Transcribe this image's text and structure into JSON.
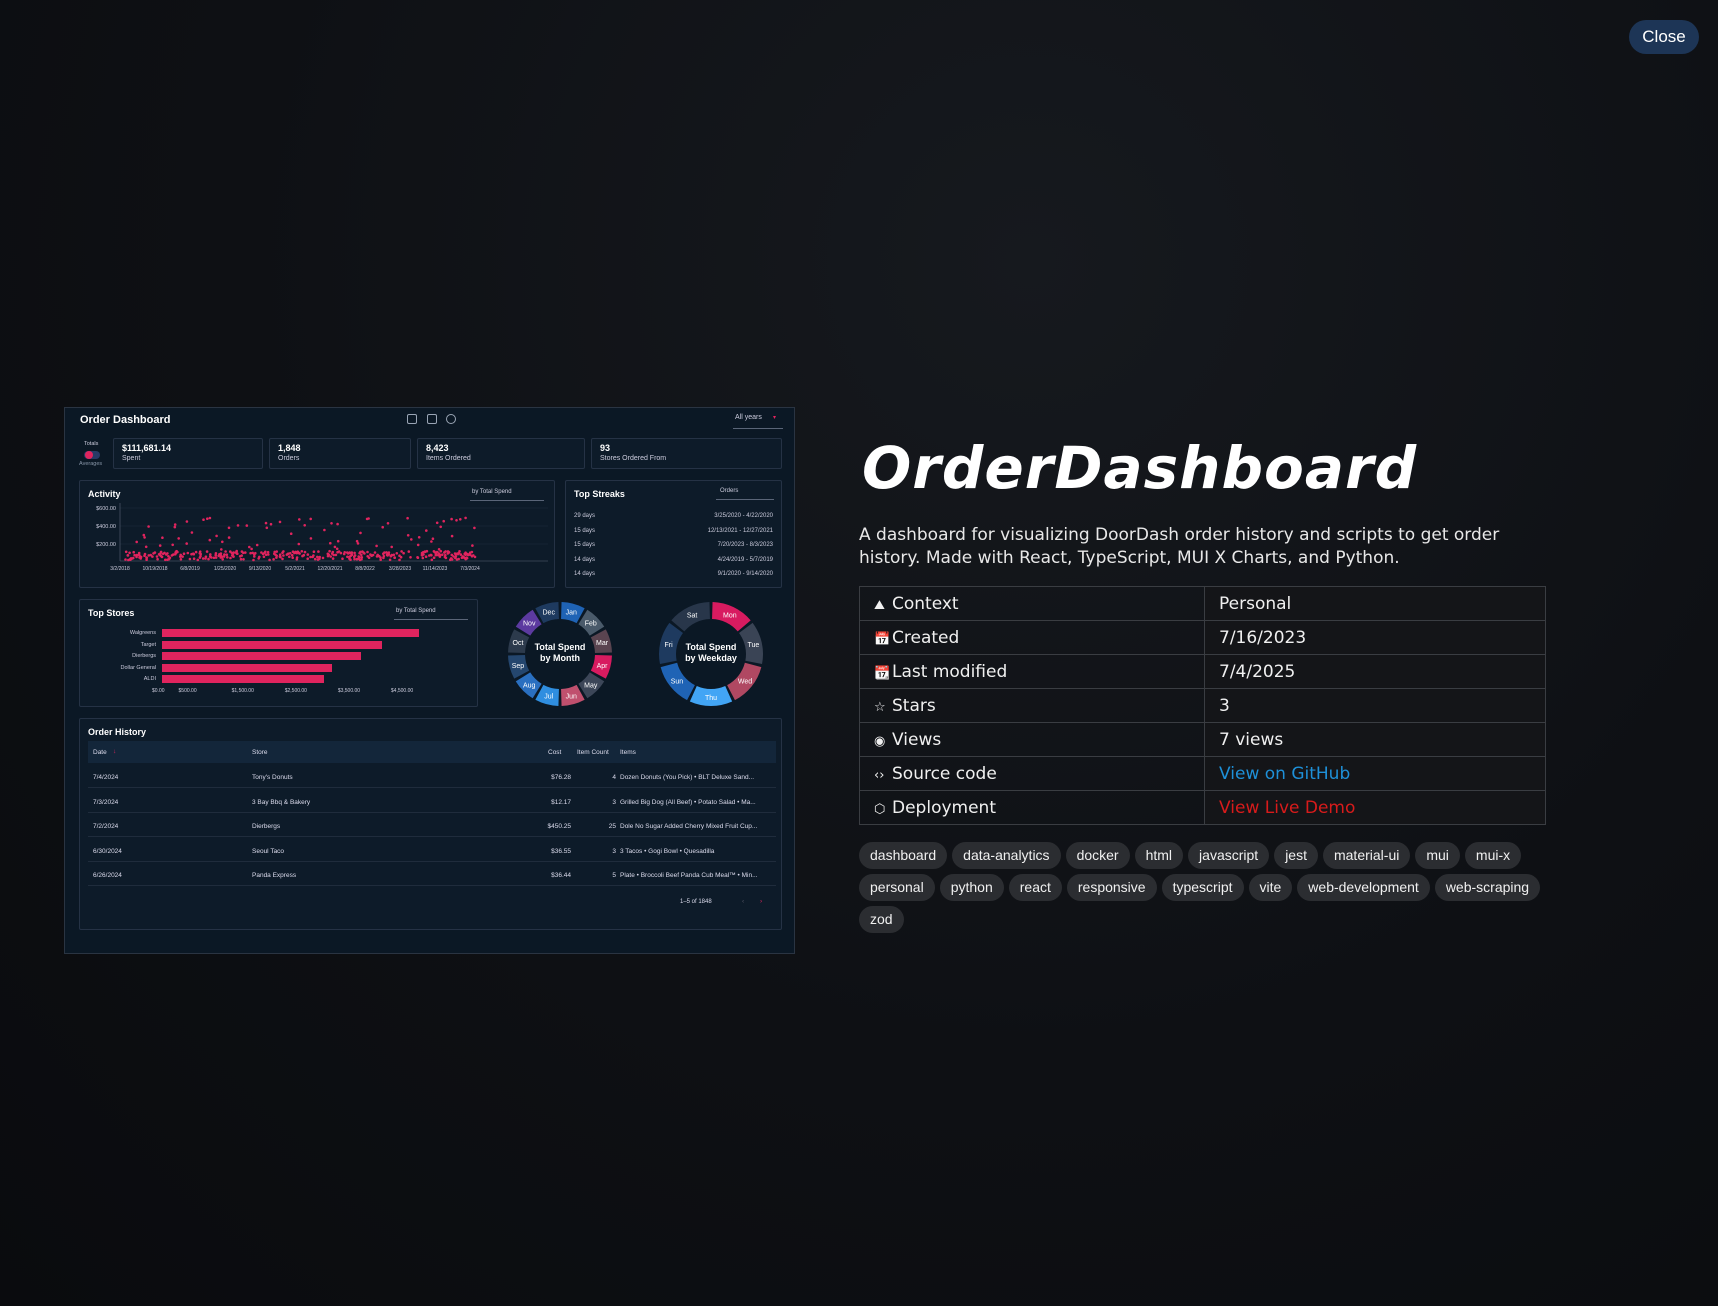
{
  "close_label": "Close",
  "project": {
    "title": "OrderDashboard",
    "description": "A dashboard for visualizing DoorDash order history and scripts to get order history. Made with React, TypeScript, MUI X Charts, and Python."
  },
  "meta": [
    {
      "icon": "context-icon",
      "glyph": "⛰",
      "key": "Context",
      "value": "Personal"
    },
    {
      "icon": "calendar-icon",
      "glyph": "📅",
      "key": "Created",
      "value": "7/16/2023"
    },
    {
      "icon": "calendar-edit-icon",
      "glyph": "📆",
      "key": "Last modified",
      "value": "7/4/2025"
    },
    {
      "icon": "star-icon",
      "glyph": "☆",
      "key": "Stars",
      "value": "3"
    },
    {
      "icon": "eye-icon",
      "glyph": "◉",
      "key": "Views",
      "value": "7 views"
    },
    {
      "icon": "code-icon",
      "glyph": "‹›",
      "key": "Source code",
      "value": "View on GitHub"
    },
    {
      "icon": "cube-icon",
      "glyph": "⬡",
      "key": "Deployment",
      "value": "View Live Demo"
    }
  ],
  "tags": [
    "dashboard",
    "data-analytics",
    "docker",
    "html",
    "javascript",
    "jest",
    "material-ui",
    "mui",
    "mui-x",
    "personal",
    "python",
    "react",
    "responsive",
    "typescript",
    "vite",
    "web-development",
    "web-scraping",
    "zod"
  ],
  "preview": {
    "title": "Order Dashboard",
    "years": "All years",
    "totals": "Totals",
    "averages": "Averages",
    "stats": [
      {
        "value": "$111,681.14",
        "label": "Spent"
      },
      {
        "value": "1,848",
        "label": "Orders"
      },
      {
        "value": "8,423",
        "label": "Items Ordered"
      },
      {
        "value": "93",
        "label": "Stores Ordered From"
      }
    ],
    "activity": {
      "title": "Activity",
      "select": "by Total Spend",
      "yticks": [
        "$600.00",
        "$400.00",
        "$200.00"
      ],
      "xticks": [
        "3/2/2018",
        "10/19/2018",
        "6/8/2019",
        "1/25/2020",
        "9/13/2020",
        "5/2/2021",
        "12/20/2021",
        "8/8/2022",
        "3/28/2023",
        "11/14/2023",
        "7/3/2024"
      ]
    },
    "streaks": {
      "title": "Top Streaks",
      "select": "Orders",
      "rows": [
        {
          "len": "29 days",
          "range": "3/25/2020 - 4/22/2020"
        },
        {
          "len": "15 days",
          "range": "12/13/2021 - 12/27/2021"
        },
        {
          "len": "15 days",
          "range": "7/20/2023 - 8/3/2023"
        },
        {
          "len": "14 days",
          "range": "4/24/2019 - 5/7/2019"
        },
        {
          "len": "14 days",
          "range": "9/1/2020 - 9/14/2020"
        }
      ]
    },
    "top_stores": {
      "title": "Top Stores",
      "select": "by Total Spend",
      "stores": [
        "Walgreens",
        "Target",
        "Dierbergs",
        "Dollar General",
        "ALDI"
      ],
      "values": [
        4850,
        4150,
        3750,
        3200,
        3050
      ],
      "xticks": [
        "$0.00",
        "$500.00",
        "$1,500.00",
        "$2,500.00",
        "$3,500.00",
        "$4,500.00"
      ]
    },
    "donut_month": {
      "title_1": "Total Spend",
      "title_2": "by Month",
      "labels": [
        "Jan",
        "Feb",
        "Mar",
        "Apr",
        "May",
        "Jun",
        "Jul",
        "Aug",
        "Sep",
        "Oct",
        "Nov",
        "Dec"
      ],
      "colors": [
        "#1f63b5",
        "#4a5a6a",
        "#5a4450",
        "#d81b60",
        "#3c4658",
        "#c0506e",
        "#2f8ee0",
        "#2a6fc0",
        "#24466e",
        "#2c3a4c",
        "#5c3aa0",
        "#1e3a5f"
      ]
    },
    "donut_weekday": {
      "title_1": "Total Spend",
      "title_2": "by Weekday",
      "labels": [
        "Mon",
        "Tue",
        "Wed",
        "Thu",
        "Sun",
        "Fri",
        "Sat"
      ],
      "colors": [
        "#d81b60",
        "#3a4455",
        "#b04862",
        "#42a5f5",
        "#1f63b5",
        "#1e3a5f",
        "#28364a"
      ]
    },
    "history": {
      "title": "Order History",
      "columns": {
        "date": "Date",
        "store": "Store",
        "cost": "Cost",
        "count": "Item Count",
        "items": "Items"
      },
      "rows": [
        {
          "date": "7/4/2024",
          "store": "Tony's Donuts",
          "cost": "$76.28",
          "count": "4",
          "items": "Dozen Donuts (You Pick) • BLT Deluxe Sand..."
        },
        {
          "date": "7/3/2024",
          "store": "3 Bay Bbq & Bakery",
          "cost": "$12.17",
          "count": "3",
          "items": "Grilled Big Dog (All Beef) • Potato Salad • Ma..."
        },
        {
          "date": "7/2/2024",
          "store": "Dierbergs",
          "cost": "$450.25",
          "count": "25",
          "items": "Dole No Sugar Added Cherry Mixed Fruit Cup..."
        },
        {
          "date": "6/30/2024",
          "store": "Seoul Taco",
          "cost": "$36.55",
          "count": "3",
          "items": "3 Tacos • Gogi Bowl • Quesadilla"
        },
        {
          "date": "6/26/2024",
          "store": "Panda Express",
          "cost": "$36.44",
          "count": "5",
          "items": "Plate • Broccoli Beef Panda Cub Meal™ • Min..."
        }
      ],
      "pagination": "1–5 of 1848"
    }
  }
}
